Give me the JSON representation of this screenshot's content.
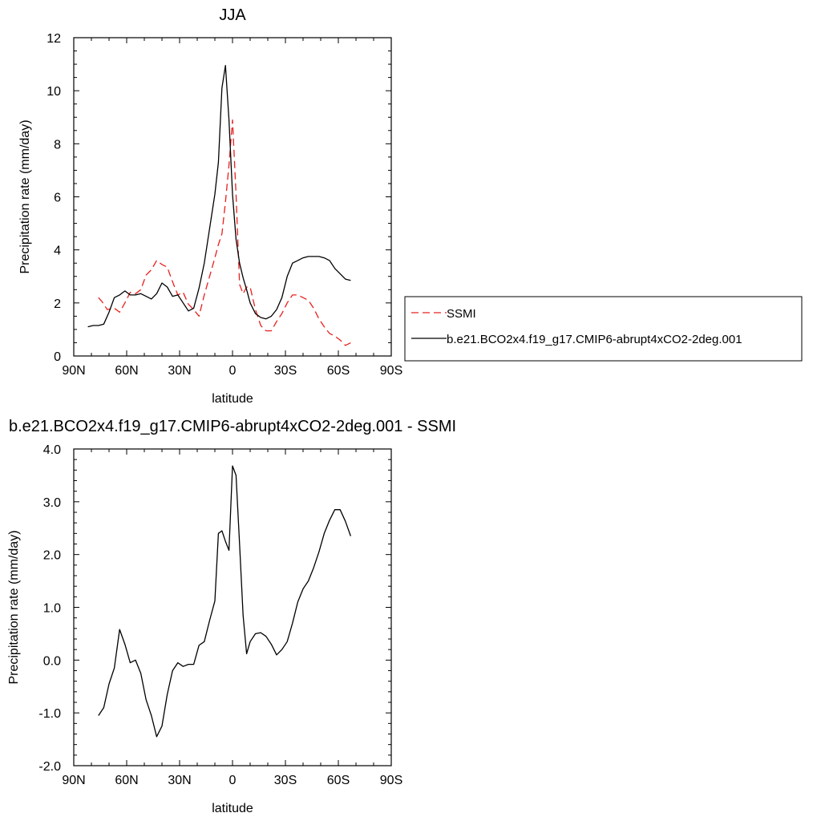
{
  "chart_data": [
    {
      "type": "line",
      "title": "JJA",
      "xlabel": "latitude",
      "ylabel": "Precipitation rate (mm/day)",
      "xlim": [
        90,
        -90
      ],
      "ylim": [
        0,
        12
      ],
      "x_ticks": [
        {
          "value": 90,
          "label": "90N"
        },
        {
          "value": 60,
          "label": "60N"
        },
        {
          "value": 30,
          "label": "30N"
        },
        {
          "value": 0,
          "label": "0"
        },
        {
          "value": -30,
          "label": "30S"
        },
        {
          "value": -60,
          "label": "60S"
        },
        {
          "value": -90,
          "label": "90S"
        }
      ],
      "y_ticks": [
        {
          "value": 0,
          "label": "0"
        },
        {
          "value": 2,
          "label": "2"
        },
        {
          "value": 4,
          "label": "4"
        },
        {
          "value": 6,
          "label": "6"
        },
        {
          "value": 8,
          "label": "8"
        },
        {
          "value": 10,
          "label": "10"
        },
        {
          "value": 12,
          "label": "12"
        }
      ],
      "legend_position": "right",
      "series": [
        {
          "name": "SSMI",
          "color": "#e8201d",
          "dash": "dashed",
          "x": [
            76,
            74,
            71,
            67,
            64,
            61,
            58,
            55,
            52,
            49,
            46,
            43,
            40,
            37,
            34,
            31,
            28,
            25,
            22,
            19,
            16,
            13,
            10,
            8,
            6,
            4,
            2,
            0,
            -2,
            -4,
            -6,
            -8,
            -10,
            -13,
            -16,
            -19,
            -22,
            -25,
            -28,
            -31,
            -34,
            -37,
            -40,
            -43,
            -46,
            -49,
            -52,
            -55,
            -58,
            -61,
            -64,
            -67
          ],
          "values": [
            2.2,
            2.05,
            1.75,
            1.8,
            1.65,
            2.0,
            2.4,
            2.35,
            2.5,
            3.05,
            3.25,
            3.6,
            3.45,
            3.35,
            2.8,
            2.3,
            2.4,
            1.95,
            1.75,
            1.5,
            2.3,
            3.0,
            3.7,
            4.2,
            4.6,
            5.8,
            7.2,
            8.9,
            6.1,
            2.7,
            2.35,
            2.6,
            2.6,
            1.75,
            1.15,
            0.95,
            0.95,
            1.3,
            1.6,
            2.0,
            2.3,
            2.3,
            2.2,
            2.1,
            1.8,
            1.4,
            1.1,
            0.85,
            0.75,
            0.6,
            0.4,
            0.5
          ]
        },
        {
          "name": "b.e21.BCO2x4.f19_g17.CMIP6-abrupt4xCO2-2deg.001",
          "color": "#000000",
          "dash": "solid",
          "x": [
            82,
            79,
            76,
            73,
            70,
            67,
            64,
            61,
            58,
            55,
            52,
            49,
            46,
            43,
            40,
            37,
            34,
            31,
            28,
            25,
            22,
            19,
            16,
            13,
            10,
            8,
            6,
            4,
            2,
            0,
            -2,
            -4,
            -6,
            -8,
            -10,
            -13,
            -16,
            -19,
            -22,
            -25,
            -28,
            -31,
            -34,
            -37,
            -40,
            -43,
            -46,
            -49,
            -52,
            -55,
            -58,
            -61,
            -64,
            -67
          ],
          "values": [
            1.1,
            1.15,
            1.15,
            1.2,
            1.65,
            2.2,
            2.3,
            2.45,
            2.3,
            2.3,
            2.35,
            2.25,
            2.15,
            2.35,
            2.75,
            2.6,
            2.25,
            2.3,
            2.0,
            1.7,
            1.8,
            2.55,
            3.5,
            4.8,
            6.1,
            7.3,
            10.1,
            10.95,
            8.9,
            6.1,
            4.4,
            3.5,
            2.95,
            2.5,
            2.0,
            1.6,
            1.45,
            1.4,
            1.5,
            1.75,
            2.2,
            3.0,
            3.5,
            3.6,
            3.7,
            3.75,
            3.75,
            3.75,
            3.7,
            3.6,
            3.3,
            3.1,
            2.9,
            2.85
          ]
        }
      ]
    },
    {
      "type": "line",
      "title": "b.e21.BCO2x4.f19_g17.CMIP6-abrupt4xCO2-2deg.001 - SSMI",
      "xlabel": "latitude",
      "ylabel": "Precipitation rate (mm/day)",
      "xlim": [
        90,
        -90
      ],
      "ylim": [
        -2,
        4
      ],
      "x_ticks": [
        {
          "value": 90,
          "label": "90N"
        },
        {
          "value": 60,
          "label": "60N"
        },
        {
          "value": 30,
          "label": "30N"
        },
        {
          "value": 0,
          "label": "0"
        },
        {
          "value": -30,
          "label": "30S"
        },
        {
          "value": -60,
          "label": "60S"
        },
        {
          "value": -90,
          "label": "90S"
        }
      ],
      "y_ticks": [
        {
          "value": -2,
          "label": "-2.0"
        },
        {
          "value": -1,
          "label": "-1.0"
        },
        {
          "value": 0,
          "label": "0.0"
        },
        {
          "value": 1,
          "label": "1.0"
        },
        {
          "value": 2,
          "label": "2.0"
        },
        {
          "value": 3,
          "label": "3.0"
        },
        {
          "value": 4,
          "label": "4.0"
        }
      ],
      "series": [
        {
          "color": "#000000",
          "dash": "solid",
          "x": [
            76,
            73,
            70,
            67,
            64,
            61,
            58,
            55,
            52,
            49,
            46,
            43,
            40,
            37,
            34,
            31,
            28,
            25,
            22,
            19,
            16,
            13,
            10,
            8,
            6,
            4,
            2,
            0,
            -2,
            -4,
            -6,
            -8,
            -10,
            -13,
            -16,
            -19,
            -22,
            -25,
            -28,
            -31,
            -34,
            -37,
            -40,
            -43,
            -46,
            -49,
            -52,
            -55,
            -58,
            -61,
            -64,
            -67
          ],
          "values": [
            -1.05,
            -0.9,
            -0.45,
            -0.15,
            0.58,
            0.3,
            -0.05,
            0.0,
            -0.25,
            -0.75,
            -1.05,
            -1.45,
            -1.25,
            -0.65,
            -0.2,
            -0.05,
            -0.12,
            -0.08,
            -0.08,
            0.28,
            0.35,
            0.75,
            1.12,
            2.4,
            2.45,
            2.25,
            2.08,
            3.68,
            3.5,
            2.2,
            0.85,
            0.12,
            0.35,
            0.5,
            0.52,
            0.45,
            0.3,
            0.1,
            0.2,
            0.35,
            0.7,
            1.1,
            1.35,
            1.5,
            1.75,
            2.05,
            2.4,
            2.65,
            2.85,
            2.85,
            2.63,
            2.35
          ]
        }
      ]
    }
  ]
}
